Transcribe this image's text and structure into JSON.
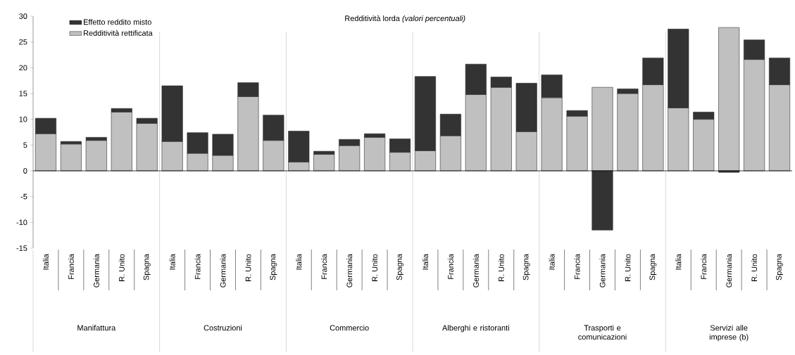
{
  "chart_data": {
    "type": "bar",
    "stacked": true,
    "title": "Redditività lorda *(valori percentuali)*",
    "categories": [
      "Italia",
      "Francia",
      "Germania",
      "R. Unito",
      "Spagna",
      "Italia",
      "Francia",
      "Germania",
      "R. Unito",
      "Spagna",
      "Italia",
      "Francia",
      "Germania",
      "R. Unito",
      "Spagna",
      "Italia",
      "Francia",
      "Germania",
      "R. Unito",
      "Spagna",
      "Italia",
      "Francia",
      "Germania",
      "R. Unito",
      "Spagna",
      "Italia",
      "Francia",
      "Germania",
      "R. Unito",
      "Spagna"
    ],
    "series": [
      {
        "name": "Redditività rettificata",
        "color": "#c0c0c0",
        "values": [
          7.2,
          5.2,
          5.9,
          11.4,
          9.2,
          5.7,
          3.4,
          3.0,
          14.4,
          5.9,
          1.7,
          3.2,
          4.9,
          6.5,
          3.6,
          3.9,
          6.8,
          14.8,
          16.2,
          7.6,
          14.2,
          10.6,
          16.2,
          15.0,
          16.7,
          12.2,
          10.0,
          27.8,
          21.6,
          16.7
        ]
      },
      {
        "name": "Effetto reddito misto",
        "color": "#333333",
        "values": [
          3.0,
          0.5,
          0.6,
          0.7,
          1.0,
          10.8,
          4.0,
          4.1,
          2.7,
          4.9,
          6.0,
          0.6,
          1.2,
          0.7,
          2.6,
          14.4,
          4.2,
          5.9,
          2.0,
          9.4,
          4.4,
          1.1,
          -11.5,
          0.9,
          5.2,
          15.3,
          1.4,
          -0.3,
          3.8,
          5.2
        ]
      }
    ],
    "annotations": [
      "Manifattura",
      "Costruzioni",
      "Commercio",
      "Alberghi e ristoranti",
      "Trasporti e comunicazioni",
      "Servizi alle imprese (b)"
    ],
    "ylim": [
      -15,
      30
    ],
    "yticks": [
      -15,
      -10,
      -5,
      0,
      5,
      10,
      15,
      20,
      25,
      30
    ],
    "legend": "top left"
  }
}
